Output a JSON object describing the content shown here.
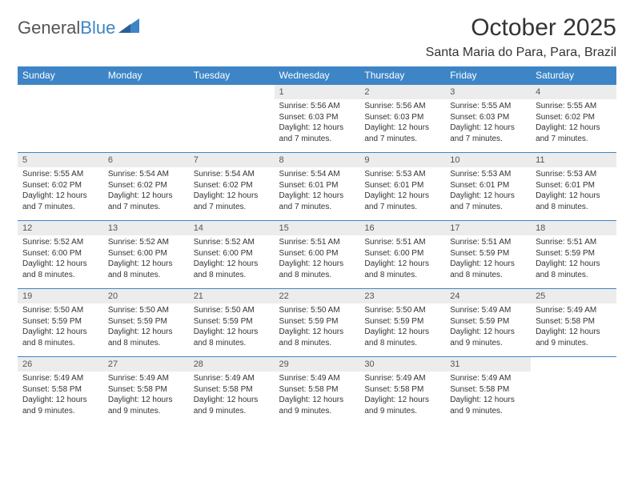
{
  "brand": {
    "part1": "General",
    "part2": "Blue"
  },
  "title": "October 2025",
  "location": "Santa Maria do Para, Para, Brazil",
  "colors": {
    "header_bg": "#3d85c6",
    "header_text": "#ffffff",
    "daynum_bg": "#ececec",
    "text": "#333333",
    "grid_line": "#3d85c6",
    "page_bg": "#ffffff"
  },
  "typography": {
    "title_fontsize": 30,
    "location_fontsize": 16,
    "weekday_fontsize": 12,
    "daynum_fontsize": 11,
    "detail_fontsize": 10
  },
  "weekdays": [
    "Sunday",
    "Monday",
    "Tuesday",
    "Wednesday",
    "Thursday",
    "Friday",
    "Saturday"
  ],
  "weeks": [
    [
      null,
      null,
      null,
      {
        "n": "1",
        "sr": "Sunrise: 5:56 AM",
        "ss": "Sunset: 6:03 PM",
        "d1": "Daylight: 12 hours",
        "d2": "and 7 minutes."
      },
      {
        "n": "2",
        "sr": "Sunrise: 5:56 AM",
        "ss": "Sunset: 6:03 PM",
        "d1": "Daylight: 12 hours",
        "d2": "and 7 minutes."
      },
      {
        "n": "3",
        "sr": "Sunrise: 5:55 AM",
        "ss": "Sunset: 6:03 PM",
        "d1": "Daylight: 12 hours",
        "d2": "and 7 minutes."
      },
      {
        "n": "4",
        "sr": "Sunrise: 5:55 AM",
        "ss": "Sunset: 6:02 PM",
        "d1": "Daylight: 12 hours",
        "d2": "and 7 minutes."
      }
    ],
    [
      {
        "n": "5",
        "sr": "Sunrise: 5:55 AM",
        "ss": "Sunset: 6:02 PM",
        "d1": "Daylight: 12 hours",
        "d2": "and 7 minutes."
      },
      {
        "n": "6",
        "sr": "Sunrise: 5:54 AM",
        "ss": "Sunset: 6:02 PM",
        "d1": "Daylight: 12 hours",
        "d2": "and 7 minutes."
      },
      {
        "n": "7",
        "sr": "Sunrise: 5:54 AM",
        "ss": "Sunset: 6:02 PM",
        "d1": "Daylight: 12 hours",
        "d2": "and 7 minutes."
      },
      {
        "n": "8",
        "sr": "Sunrise: 5:54 AM",
        "ss": "Sunset: 6:01 PM",
        "d1": "Daylight: 12 hours",
        "d2": "and 7 minutes."
      },
      {
        "n": "9",
        "sr": "Sunrise: 5:53 AM",
        "ss": "Sunset: 6:01 PM",
        "d1": "Daylight: 12 hours",
        "d2": "and 7 minutes."
      },
      {
        "n": "10",
        "sr": "Sunrise: 5:53 AM",
        "ss": "Sunset: 6:01 PM",
        "d1": "Daylight: 12 hours",
        "d2": "and 7 minutes."
      },
      {
        "n": "11",
        "sr": "Sunrise: 5:53 AM",
        "ss": "Sunset: 6:01 PM",
        "d1": "Daylight: 12 hours",
        "d2": "and 8 minutes."
      }
    ],
    [
      {
        "n": "12",
        "sr": "Sunrise: 5:52 AM",
        "ss": "Sunset: 6:00 PM",
        "d1": "Daylight: 12 hours",
        "d2": "and 8 minutes."
      },
      {
        "n": "13",
        "sr": "Sunrise: 5:52 AM",
        "ss": "Sunset: 6:00 PM",
        "d1": "Daylight: 12 hours",
        "d2": "and 8 minutes."
      },
      {
        "n": "14",
        "sr": "Sunrise: 5:52 AM",
        "ss": "Sunset: 6:00 PM",
        "d1": "Daylight: 12 hours",
        "d2": "and 8 minutes."
      },
      {
        "n": "15",
        "sr": "Sunrise: 5:51 AM",
        "ss": "Sunset: 6:00 PM",
        "d1": "Daylight: 12 hours",
        "d2": "and 8 minutes."
      },
      {
        "n": "16",
        "sr": "Sunrise: 5:51 AM",
        "ss": "Sunset: 6:00 PM",
        "d1": "Daylight: 12 hours",
        "d2": "and 8 minutes."
      },
      {
        "n": "17",
        "sr": "Sunrise: 5:51 AM",
        "ss": "Sunset: 5:59 PM",
        "d1": "Daylight: 12 hours",
        "d2": "and 8 minutes."
      },
      {
        "n": "18",
        "sr": "Sunrise: 5:51 AM",
        "ss": "Sunset: 5:59 PM",
        "d1": "Daylight: 12 hours",
        "d2": "and 8 minutes."
      }
    ],
    [
      {
        "n": "19",
        "sr": "Sunrise: 5:50 AM",
        "ss": "Sunset: 5:59 PM",
        "d1": "Daylight: 12 hours",
        "d2": "and 8 minutes."
      },
      {
        "n": "20",
        "sr": "Sunrise: 5:50 AM",
        "ss": "Sunset: 5:59 PM",
        "d1": "Daylight: 12 hours",
        "d2": "and 8 minutes."
      },
      {
        "n": "21",
        "sr": "Sunrise: 5:50 AM",
        "ss": "Sunset: 5:59 PM",
        "d1": "Daylight: 12 hours",
        "d2": "and 8 minutes."
      },
      {
        "n": "22",
        "sr": "Sunrise: 5:50 AM",
        "ss": "Sunset: 5:59 PM",
        "d1": "Daylight: 12 hours",
        "d2": "and 8 minutes."
      },
      {
        "n": "23",
        "sr": "Sunrise: 5:50 AM",
        "ss": "Sunset: 5:59 PM",
        "d1": "Daylight: 12 hours",
        "d2": "and 8 minutes."
      },
      {
        "n": "24",
        "sr": "Sunrise: 5:49 AM",
        "ss": "Sunset: 5:59 PM",
        "d1": "Daylight: 12 hours",
        "d2": "and 9 minutes."
      },
      {
        "n": "25",
        "sr": "Sunrise: 5:49 AM",
        "ss": "Sunset: 5:58 PM",
        "d1": "Daylight: 12 hours",
        "d2": "and 9 minutes."
      }
    ],
    [
      {
        "n": "26",
        "sr": "Sunrise: 5:49 AM",
        "ss": "Sunset: 5:58 PM",
        "d1": "Daylight: 12 hours",
        "d2": "and 9 minutes."
      },
      {
        "n": "27",
        "sr": "Sunrise: 5:49 AM",
        "ss": "Sunset: 5:58 PM",
        "d1": "Daylight: 12 hours",
        "d2": "and 9 minutes."
      },
      {
        "n": "28",
        "sr": "Sunrise: 5:49 AM",
        "ss": "Sunset: 5:58 PM",
        "d1": "Daylight: 12 hours",
        "d2": "and 9 minutes."
      },
      {
        "n": "29",
        "sr": "Sunrise: 5:49 AM",
        "ss": "Sunset: 5:58 PM",
        "d1": "Daylight: 12 hours",
        "d2": "and 9 minutes."
      },
      {
        "n": "30",
        "sr": "Sunrise: 5:49 AM",
        "ss": "Sunset: 5:58 PM",
        "d1": "Daylight: 12 hours",
        "d2": "and 9 minutes."
      },
      {
        "n": "31",
        "sr": "Sunrise: 5:49 AM",
        "ss": "Sunset: 5:58 PM",
        "d1": "Daylight: 12 hours",
        "d2": "and 9 minutes."
      },
      null
    ]
  ]
}
